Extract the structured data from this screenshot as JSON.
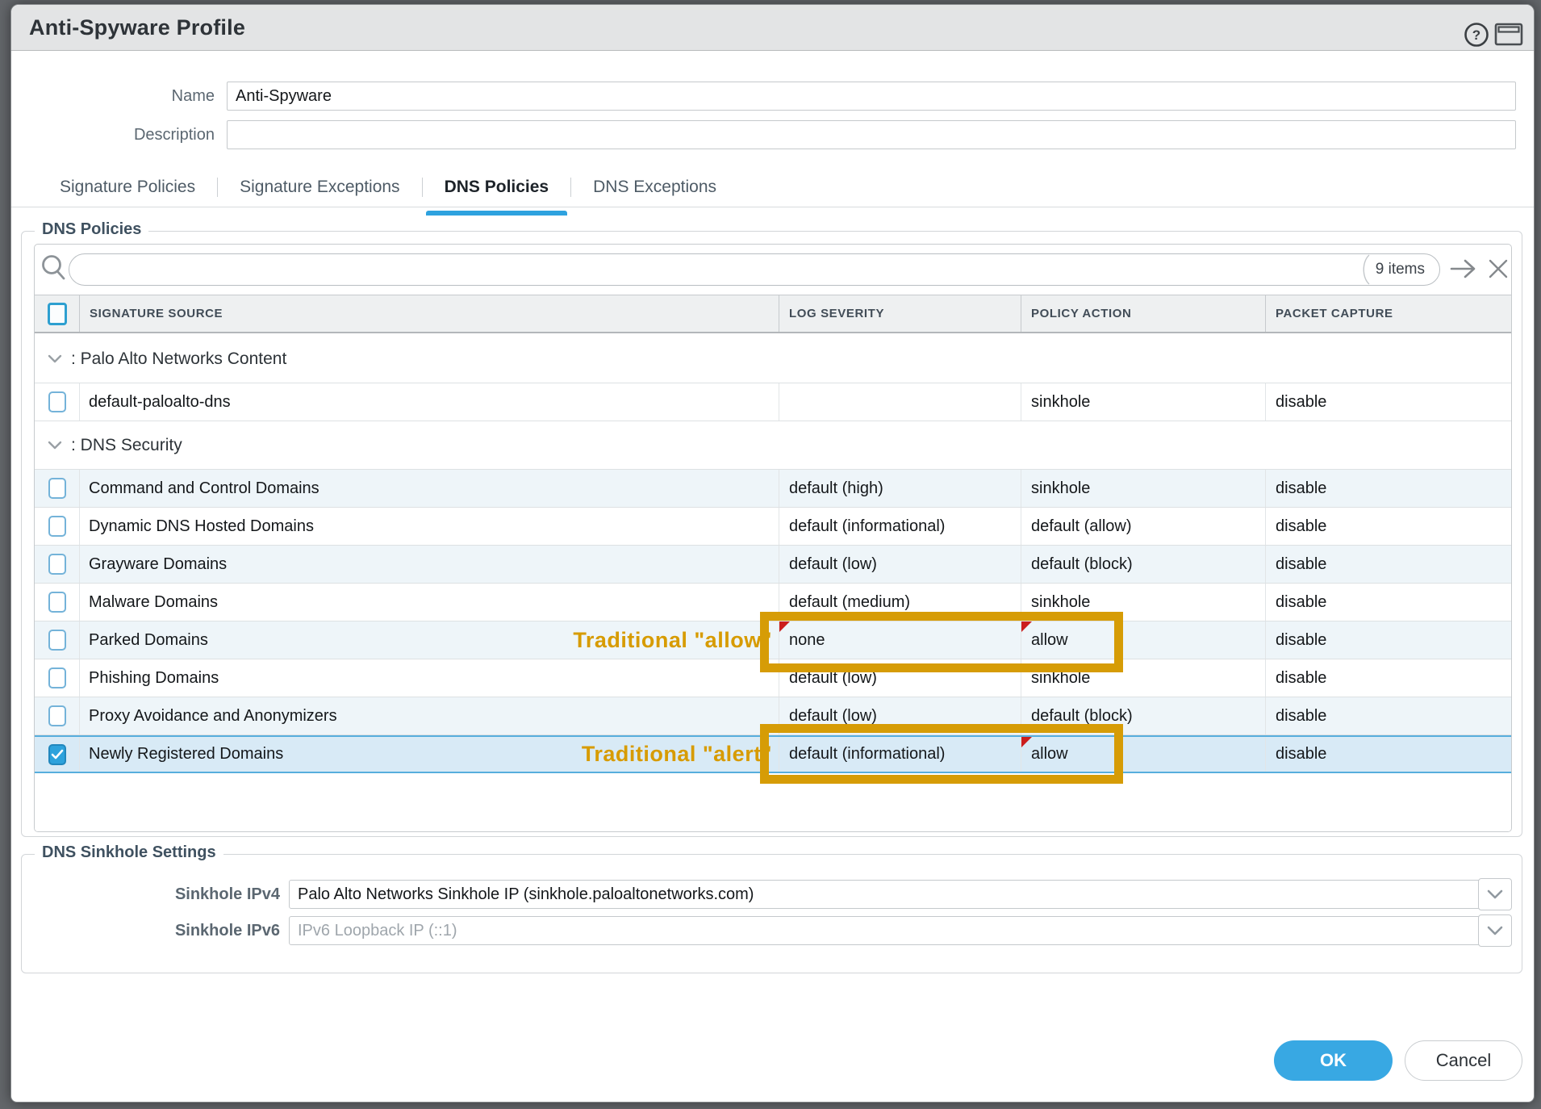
{
  "dialog": {
    "title": "Anti-Spyware Profile",
    "help_glyph": "?"
  },
  "form": {
    "name": {
      "label": "Name",
      "value": "Anti-Spyware"
    },
    "description": {
      "label": "Description",
      "value": ""
    }
  },
  "tabs": [
    {
      "label": "Signature Policies",
      "active": false
    },
    {
      "label": "Signature Exceptions",
      "active": false
    },
    {
      "label": "DNS Policies",
      "active": true
    },
    {
      "label": "DNS Exceptions",
      "active": false
    }
  ],
  "dns_policies": {
    "legend": "DNS Policies",
    "items_count": "9 items",
    "columns": [
      "SIGNATURE SOURCE",
      "LOG SEVERITY",
      "POLICY ACTION",
      "PACKET CAPTURE"
    ],
    "rows": [
      {
        "type": "group",
        "label": ": Palo Alto Networks Content"
      },
      {
        "type": "data",
        "source": "default-paloalto-dns",
        "log_severity": "",
        "policy_action": "sinkhole",
        "packet_capture": "disable",
        "checked": false,
        "shaded": false
      },
      {
        "type": "group",
        "label": ": DNS Security"
      },
      {
        "type": "data",
        "source": "Command and Control Domains",
        "log_severity": "default (high)",
        "policy_action": "sinkhole",
        "packet_capture": "disable",
        "checked": false,
        "shaded": true
      },
      {
        "type": "data",
        "source": "Dynamic DNS Hosted Domains",
        "log_severity": "default (informational)",
        "policy_action": "default (allow)",
        "packet_capture": "disable",
        "checked": false,
        "shaded": false
      },
      {
        "type": "data",
        "source": "Grayware Domains",
        "log_severity": "default (low)",
        "policy_action": "default (block)",
        "packet_capture": "disable",
        "checked": false,
        "shaded": true
      },
      {
        "type": "data",
        "source": "Malware Domains",
        "log_severity": "default (medium)",
        "policy_action": "sinkhole",
        "packet_capture": "disable",
        "checked": false,
        "shaded": false
      },
      {
        "type": "data",
        "source": "Parked Domains",
        "log_severity": "none",
        "policy_action": "allow",
        "packet_capture": "disable",
        "checked": false,
        "shaded": true,
        "annotation": "Traditional \"allow\"",
        "severity_modified": true,
        "action_modified": true
      },
      {
        "type": "data",
        "source": "Phishing Domains",
        "log_severity": "default (low)",
        "policy_action": "sinkhole",
        "packet_capture": "disable",
        "checked": false,
        "shaded": false
      },
      {
        "type": "data",
        "source": "Proxy Avoidance and Anonymizers",
        "log_severity": "default (low)",
        "policy_action": "default (block)",
        "packet_capture": "disable",
        "checked": false,
        "shaded": true
      },
      {
        "type": "data",
        "source": "Newly Registered Domains",
        "log_severity": "default (informational)",
        "policy_action": "allow",
        "packet_capture": "disable",
        "checked": true,
        "selected": true,
        "shaded": false,
        "annotation": "Traditional \"alert\"",
        "action_modified": true
      }
    ]
  },
  "sinkhole": {
    "legend": "DNS Sinkhole Settings",
    "ipv4": {
      "label": "Sinkhole IPv4",
      "value": "Palo Alto Networks Sinkhole IP (sinkhole.paloaltonetworks.com)",
      "muted": false
    },
    "ipv6": {
      "label": "Sinkhole IPv6",
      "value": "IPv6 Loopback IP (::1)",
      "muted": true
    }
  },
  "footer": {
    "ok_label": "OK",
    "cancel_label": "Cancel"
  },
  "colors": {
    "accent_blue": "#2ea2df",
    "highlight_orange": "#d69c06",
    "selected_row_blue": "#d8eaf6",
    "modified_flag_red": "#cb1d1d",
    "ok_button_blue": "#38a8e3"
  }
}
